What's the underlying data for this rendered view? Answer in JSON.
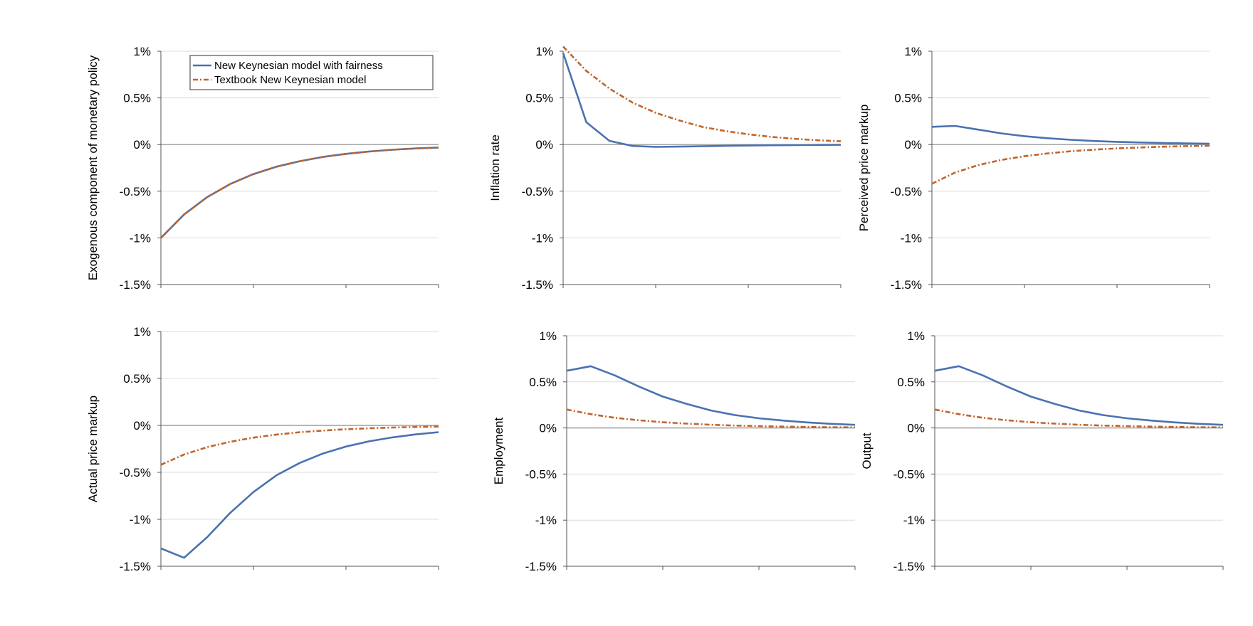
{
  "chart_data": [
    {
      "type": "line",
      "ylabel": "Exogenous component of monetary policy",
      "ylim": [
        -1.5,
        1
      ],
      "yticks": [
        "1%",
        "0.5%",
        "0%",
        "-0.5%",
        "-1%",
        "-1.5%"
      ],
      "grid": true,
      "legend": "top-right",
      "series": [
        {
          "name": "New Keynesian model with fairness",
          "color": "#4a72b0",
          "style": "solid",
          "values": [
            -1.0,
            -0.75,
            -0.563,
            -0.422,
            -0.316,
            -0.237,
            -0.178,
            -0.133,
            -0.1,
            -0.075,
            -0.056,
            -0.042,
            -0.032
          ]
        },
        {
          "name": "Textbook New Keynesian model",
          "color": "#c0652b",
          "style": "dash-dot",
          "values": [
            -1.0,
            -0.75,
            -0.563,
            -0.422,
            -0.316,
            -0.237,
            -0.178,
            -0.133,
            -0.1,
            -0.075,
            -0.056,
            -0.042,
            -0.032
          ]
        }
      ]
    },
    {
      "type": "line",
      "ylabel": "Inflation rate",
      "ylim": [
        -1.5,
        1
      ],
      "yticks": [
        "1%",
        "0.5%",
        "0%",
        "-0.5%",
        "-1%",
        "-1.5%"
      ],
      "grid": true,
      "series": [
        {
          "color": "#4a72b0",
          "style": "solid",
          "values": [
            0.98,
            0.24,
            0.04,
            -0.015,
            -0.025,
            -0.022,
            -0.018,
            -0.014,
            -0.011,
            -0.008,
            -0.006,
            -0.004,
            -0.003
          ]
        },
        {
          "color": "#c0652b",
          "style": "dash-dot",
          "values": [
            1.05,
            0.79,
            0.6,
            0.45,
            0.34,
            0.26,
            0.19,
            0.145,
            0.11,
            0.082,
            0.062,
            0.046,
            0.035
          ]
        }
      ]
    },
    {
      "type": "line",
      "ylabel": "Perceived price markup",
      "ylim": [
        -1.5,
        1
      ],
      "yticks": [
        "1%",
        "0.5%",
        "0%",
        "-0.5%",
        "-1%",
        "-1.5%"
      ],
      "grid": true,
      "series": [
        {
          "color": "#4a72b0",
          "style": "solid",
          "values": [
            0.19,
            0.2,
            0.16,
            0.12,
            0.09,
            0.068,
            0.051,
            0.038,
            0.029,
            0.022,
            0.016,
            0.012,
            0.009
          ]
        },
        {
          "color": "#c0652b",
          "style": "dash-dot",
          "values": [
            -0.42,
            -0.3,
            -0.22,
            -0.165,
            -0.125,
            -0.095,
            -0.072,
            -0.055,
            -0.041,
            -0.031,
            -0.023,
            -0.017,
            -0.013
          ]
        }
      ]
    },
    {
      "type": "line",
      "ylabel": "Actual price markup",
      "ylim": [
        -1.5,
        1
      ],
      "yticks": [
        "1%",
        "0.5%",
        "0%",
        "-0.5%",
        "-1%",
        "-1.5%"
      ],
      "grid": true,
      "series": [
        {
          "color": "#4a72b0",
          "style": "solid",
          "values": [
            -1.31,
            -1.41,
            -1.19,
            -0.93,
            -0.71,
            -0.53,
            -0.4,
            -0.3,
            -0.225,
            -0.17,
            -0.128,
            -0.096,
            -0.072
          ]
        },
        {
          "color": "#c0652b",
          "style": "dash-dot",
          "values": [
            -0.42,
            -0.31,
            -0.232,
            -0.174,
            -0.13,
            -0.098,
            -0.073,
            -0.055,
            -0.041,
            -0.031,
            -0.023,
            -0.017,
            -0.013
          ]
        }
      ]
    },
    {
      "type": "line",
      "ylabel": "Employment",
      "ylim": [
        -1.5,
        1
      ],
      "yticks": [
        "1%",
        "0.5%",
        "0%",
        "-0.5%",
        "-1%",
        "-1.5%"
      ],
      "grid": true,
      "series": [
        {
          "color": "#4a72b0",
          "style": "solid",
          "values": [
            0.62,
            0.67,
            0.57,
            0.45,
            0.34,
            0.26,
            0.19,
            0.14,
            0.105,
            0.08,
            0.06,
            0.045,
            0.034
          ]
        },
        {
          "color": "#c0652b",
          "style": "dash-dot",
          "values": [
            0.2,
            0.15,
            0.11,
            0.083,
            0.062,
            0.047,
            0.035,
            0.026,
            0.02,
            0.015,
            0.011,
            0.008,
            0.006
          ]
        }
      ]
    },
    {
      "type": "line",
      "ylabel": "Output",
      "ylim": [
        -1.5,
        1
      ],
      "yticks": [
        "1%",
        "0.5%",
        "0%",
        "-0.5%",
        "-1%",
        "-1.5%"
      ],
      "grid": true,
      "series": [
        {
          "color": "#4a72b0",
          "style": "solid",
          "values": [
            0.62,
            0.67,
            0.57,
            0.45,
            0.34,
            0.26,
            0.19,
            0.14,
            0.105,
            0.08,
            0.06,
            0.045,
            0.034
          ]
        },
        {
          "color": "#c0652b",
          "style": "dash-dot",
          "values": [
            0.2,
            0.15,
            0.11,
            0.083,
            0.062,
            0.047,
            0.035,
            0.026,
            0.02,
            0.015,
            0.011,
            0.008,
            0.006
          ]
        }
      ]
    }
  ]
}
